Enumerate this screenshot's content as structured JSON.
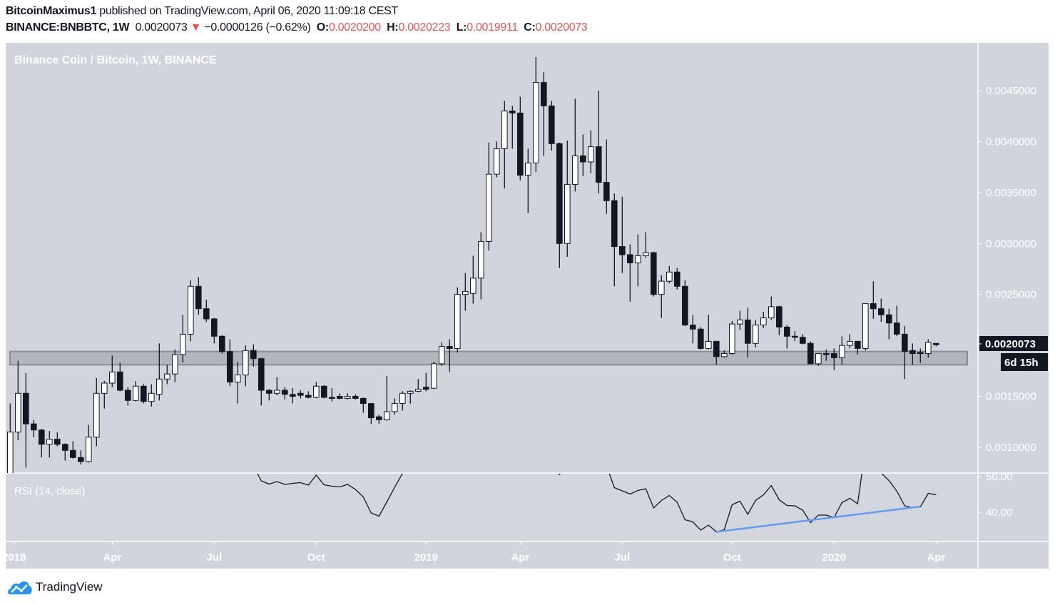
{
  "header": {
    "author": "BitcoinMaximus1",
    "published": "published on TradingView.com, April 06, 2020 11:09:18 CEST",
    "symbol": "BINANCE:BNBBTC, 1W",
    "last": "0.0020073",
    "change": "−0.0000126 (−0.62%)",
    "o_label": "O:",
    "o": "0.0020200",
    "h_label": "H:",
    "h": "0.0020223",
    "l_label": "L:",
    "l": "0.0019911",
    "c_label": "C:",
    "c": "0.0020073",
    "direction_icon": "triangle-down-icon"
  },
  "colors": {
    "pane_bg": "#d1d4dc",
    "bull_body": "#ffffff",
    "bear_body": "#131722",
    "down": "#ef5350",
    "rsi_line": "#131722",
    "trendline": "#5b9cf6",
    "label_bg": "#131722"
  },
  "chart_data": {
    "type": "candlestick",
    "title": "Binance Coin / Bitcoin, 1W, BINANCE",
    "interval": "1W",
    "price_axis": {
      "ticks": [
        0.0045,
        0.004,
        0.0035,
        0.003,
        0.0025,
        0.0015,
        0.001
      ],
      "tick_labels": [
        "0.0045000",
        "0.0040000",
        "0.0035000",
        "0.0030000",
        "0.0025000",
        "0.0015000",
        "0.0010000"
      ],
      "current_price_label": "0.0020073",
      "current_price": 0.0020073,
      "countdown_label": "6d 15h"
    },
    "time_axis": {
      "labels": [
        {
          "text": "2018",
          "index": 0.5
        },
        {
          "text": "Apr",
          "index": 13
        },
        {
          "text": "Jul",
          "index": 26
        },
        {
          "text": "Oct",
          "index": 39
        },
        {
          "text": "2019",
          "index": 53
        },
        {
          "text": "Apr",
          "index": 65
        },
        {
          "text": "Jul",
          "index": 78
        },
        {
          "text": "Oct",
          "index": 92
        },
        {
          "text": "2020",
          "index": 105
        },
        {
          "text": "Apr",
          "index": 118
        }
      ]
    },
    "ohlc_fields": [
      "open",
      "high",
      "low",
      "close"
    ],
    "candles": [
      [
        0.0007,
        0.00143,
        0.0006,
        0.00115
      ],
      [
        0.00115,
        0.00185,
        0.00107,
        0.00153
      ],
      [
        0.00153,
        0.00173,
        0.0008,
        0.00123
      ],
      [
        0.00123,
        0.00127,
        0.0011,
        0.00117
      ],
      [
        0.00117,
        0.00118,
        0.0009,
        0.00103
      ],
      [
        0.00103,
        0.00116,
        0.0009,
        0.00108
      ],
      [
        0.00108,
        0.00115,
        0.00101,
        0.00103
      ],
      [
        0.00103,
        0.00104,
        0.00087,
        0.00097
      ],
      [
        0.00097,
        0.00106,
        0.00089,
        0.0009
      ],
      [
        0.0009,
        0.00097,
        0.00083,
        0.00086
      ],
      [
        0.00086,
        0.00122,
        0.00085,
        0.0011
      ],
      [
        0.0011,
        0.00168,
        0.00101,
        0.00153
      ],
      [
        0.00153,
        0.00165,
        0.00138,
        0.00163
      ],
      [
        0.00163,
        0.0019,
        0.00159,
        0.00174
      ],
      [
        0.00174,
        0.00183,
        0.00155,
        0.00156
      ],
      [
        0.00156,
        0.00159,
        0.00141,
        0.00146
      ],
      [
        0.00146,
        0.00165,
        0.00145,
        0.0016
      ],
      [
        0.0016,
        0.00162,
        0.00143,
        0.00145
      ],
      [
        0.00145,
        0.00162,
        0.0014,
        0.00153
      ],
      [
        0.00152,
        0.00202,
        0.00146,
        0.00167
      ],
      [
        0.00167,
        0.00181,
        0.00162,
        0.00172
      ],
      [
        0.00172,
        0.00196,
        0.00164,
        0.00191
      ],
      [
        0.00191,
        0.0023,
        0.00183,
        0.00211
      ],
      [
        0.00211,
        0.00264,
        0.00204,
        0.00258
      ],
      [
        0.00258,
        0.00267,
        0.0023,
        0.00236
      ],
      [
        0.00236,
        0.00245,
        0.00223,
        0.00226
      ],
      [
        0.00226,
        0.00227,
        0.00202,
        0.00209
      ],
      [
        0.00209,
        0.0021,
        0.00192,
        0.00194
      ],
      [
        0.00194,
        0.00206,
        0.0016,
        0.00164
      ],
      [
        0.00164,
        0.00184,
        0.00143,
        0.00171
      ],
      [
        0.00171,
        0.002,
        0.0016,
        0.00195
      ],
      [
        0.00195,
        0.00201,
        0.00179,
        0.00187
      ],
      [
        0.00187,
        0.00188,
        0.00141,
        0.00156
      ],
      [
        0.00156,
        0.00157,
        0.00146,
        0.00153
      ],
      [
        0.00153,
        0.00169,
        0.00151,
        0.00156
      ],
      [
        0.00156,
        0.00159,
        0.00147,
        0.00152
      ],
      [
        0.00152,
        0.00158,
        0.00143,
        0.0015
      ],
      [
        0.00153,
        0.00156,
        0.00148,
        0.00151
      ],
      [
        0.00151,
        0.00155,
        0.00148,
        0.00149
      ],
      [
        0.00149,
        0.00164,
        0.00148,
        0.0016
      ],
      [
        0.0016,
        0.00161,
        0.00148,
        0.00149
      ],
      [
        0.00149,
        0.00158,
        0.00145,
        0.00148
      ],
      [
        0.0015,
        0.00153,
        0.00147,
        0.00148
      ],
      [
        0.00148,
        0.00153,
        0.00147,
        0.0015
      ],
      [
        0.0015,
        0.00152,
        0.00147,
        0.00148
      ],
      [
        0.00148,
        0.00149,
        0.00134,
        0.00143
      ],
      [
        0.00143,
        0.00143,
        0.00123,
        0.00129
      ],
      [
        0.0013,
        0.00132,
        0.00123,
        0.00127
      ],
      [
        0.00127,
        0.0017,
        0.00126,
        0.00135
      ],
      [
        0.00135,
        0.00148,
        0.00132,
        0.00143
      ],
      [
        0.00143,
        0.00155,
        0.00136,
        0.00153
      ],
      [
        0.00153,
        0.00156,
        0.00143,
        0.00155
      ],
      [
        0.00155,
        0.00167,
        0.00154,
        0.00157
      ],
      [
        0.00159,
        0.00173,
        0.00155,
        0.00157
      ],
      [
        0.00158,
        0.00184,
        0.00157,
        0.00182
      ],
      [
        0.00182,
        0.00203,
        0.0018,
        0.00199
      ],
      [
        0.00199,
        0.00206,
        0.00174,
        0.00197
      ],
      [
        0.00197,
        0.00257,
        0.00193,
        0.0025
      ],
      [
        0.0025,
        0.00271,
        0.00234,
        0.00253
      ],
      [
        0.00251,
        0.00288,
        0.00241,
        0.00266
      ],
      [
        0.00266,
        0.00311,
        0.00245,
        0.00302
      ],
      [
        0.00302,
        0.00399,
        0.00293,
        0.00368
      ],
      [
        0.00368,
        0.004,
        0.00365,
        0.00393
      ],
      [
        0.00393,
        0.0044,
        0.00354,
        0.0043
      ],
      [
        0.0043,
        0.00435,
        0.00393,
        0.00428
      ],
      [
        0.00428,
        0.00444,
        0.00362,
        0.00367
      ],
      [
        0.00367,
        0.00393,
        0.0033,
        0.00379
      ],
      [
        0.00379,
        0.00483,
        0.0037,
        0.00458
      ],
      [
        0.00458,
        0.00468,
        0.00386,
        0.00435
      ],
      [
        0.00435,
        0.0044,
        0.00391,
        0.00398
      ],
      [
        0.00398,
        0.00399,
        0.00276,
        0.003
      ],
      [
        0.003,
        0.00401,
        0.00287,
        0.00358
      ],
      [
        0.00358,
        0.00442,
        0.00351,
        0.00386
      ],
      [
        0.00386,
        0.00407,
        0.00366,
        0.0038
      ],
      [
        0.0038,
        0.00411,
        0.00369,
        0.00395
      ],
      [
        0.00395,
        0.0045,
        0.00349,
        0.0036
      ],
      [
        0.0036,
        0.00402,
        0.00329,
        0.00342
      ],
      [
        0.00342,
        0.00349,
        0.00258,
        0.00297
      ],
      [
        0.00297,
        0.00346,
        0.00271,
        0.00289
      ],
      [
        0.00289,
        0.00299,
        0.00243,
        0.00281
      ],
      [
        0.00281,
        0.00309,
        0.00258,
        0.00288
      ],
      [
        0.00288,
        0.00311,
        0.00286,
        0.00291
      ],
      [
        0.00291,
        0.00292,
        0.00248,
        0.0025
      ],
      [
        0.0025,
        0.00269,
        0.00227,
        0.00263
      ],
      [
        0.00263,
        0.00278,
        0.00261,
        0.00272
      ],
      [
        0.00272,
        0.00276,
        0.00255,
        0.00258
      ],
      [
        0.00258,
        0.00264,
        0.00219,
        0.0022
      ],
      [
        0.0022,
        0.0023,
        0.00202,
        0.00216
      ],
      [
        0.00216,
        0.00218,
        0.00196,
        0.00197
      ],
      [
        0.00197,
        0.0023,
        0.00196,
        0.00204
      ],
      [
        0.00204,
        0.00204,
        0.00181,
        0.00189
      ],
      [
        0.00189,
        0.00195,
        0.00188,
        0.00192
      ],
      [
        0.00192,
        0.00224,
        0.00191,
        0.00221
      ],
      [
        0.00221,
        0.00234,
        0.00215,
        0.00225
      ],
      [
        0.00225,
        0.00237,
        0.00188,
        0.00202
      ],
      [
        0.00202,
        0.00225,
        0.00198,
        0.0022
      ],
      [
        0.0022,
        0.00233,
        0.00217,
        0.00227
      ],
      [
        0.00227,
        0.00248,
        0.00225,
        0.00238
      ],
      [
        0.00238,
        0.00239,
        0.0021,
        0.00218
      ],
      [
        0.00218,
        0.0022,
        0.00197,
        0.00209
      ],
      [
        0.00209,
        0.00214,
        0.00204,
        0.00208
      ],
      [
        0.00208,
        0.00211,
        0.00201,
        0.00202
      ],
      [
        0.00202,
        0.00204,
        0.00182,
        0.00182
      ],
      [
        0.00182,
        0.00192,
        0.0018,
        0.00192
      ],
      [
        0.00192,
        0.00196,
        0.00185,
        0.00191
      ],
      [
        0.00192,
        0.00197,
        0.00176,
        0.00188
      ],
      [
        0.00188,
        0.00209,
        0.00181,
        0.002
      ],
      [
        0.002,
        0.00211,
        0.00197,
        0.00204
      ],
      [
        0.00204,
        0.00204,
        0.00191,
        0.00197
      ],
      [
        0.00197,
        0.00241,
        0.00195,
        0.00241
      ],
      [
        0.00241,
        0.00263,
        0.00226,
        0.00236
      ],
      [
        0.00236,
        0.00246,
        0.00223,
        0.0023
      ],
      [
        0.0023,
        0.00236,
        0.00206,
        0.00222
      ],
      [
        0.00222,
        0.00239,
        0.00209,
        0.00211
      ],
      [
        0.00211,
        0.00219,
        0.00167,
        0.00194
      ],
      [
        0.00195,
        0.00202,
        0.00181,
        0.00192
      ],
      [
        0.00193,
        0.00197,
        0.00183,
        0.00192
      ],
      [
        0.00192,
        0.00206,
        0.00188,
        0.00203
      ],
      [
        0.00202,
        0.0020223,
        0.0019911,
        0.0020073
      ]
    ],
    "support_zone": {
      "top": 0.00194,
      "bottom": 0.00181,
      "start_index": 0,
      "end_index": 122
    },
    "rsi": {
      "label": "RSI (14, close)",
      "ticks": [
        50,
        40
      ],
      "tick_labels": [
        "50.00",
        "40.00"
      ],
      "values": [
        null,
        null,
        null,
        null,
        null,
        null,
        null,
        null,
        null,
        null,
        null,
        null,
        null,
        null,
        null,
        null,
        null,
        null,
        null,
        null,
        null,
        null,
        null,
        null,
        null,
        null,
        null,
        null,
        null,
        null,
        null,
        53,
        48.8,
        47.9,
        48.6,
        47.8,
        48.1,
        48.3,
        47.6,
        50.4,
        47.7,
        47.3,
        47.1,
        47.8,
        46.4,
        44.3,
        39.8,
        38.9,
        42.9,
        47.0,
        50.9,
        53,
        null,
        null,
        null,
        null,
        null,
        null,
        null,
        null,
        null,
        null,
        null,
        null,
        null,
        null,
        null,
        null,
        null,
        53,
        50.6,
        53,
        null,
        null,
        null,
        null,
        53,
        46.9,
        46.0,
        45.1,
        46.1,
        46.6,
        41.2,
        43.3,
        44.7,
        42.8,
        37.9,
        37.3,
        35.0,
        36.4,
        34.5,
        35.1,
        42.1,
        43.1,
        39.4,
        43.3,
        44.9,
        47.5,
        43.5,
        41.9,
        41.8,
        40.6,
        37.1,
        39.2,
        39.2,
        38.5,
        42.7,
        43.9,
        42.4,
        58,
        58,
        51,
        48.9,
        45.9,
        41.8,
        41.3,
        41.5,
        45.3,
        44.9
      ],
      "trendline": {
        "start_index": 90,
        "start_value": 34.5,
        "end_index": 116,
        "end_value": 41.6
      }
    }
  },
  "footer": {
    "brand": "TradingView",
    "logo_icon": "tradingview-cloud-icon"
  }
}
